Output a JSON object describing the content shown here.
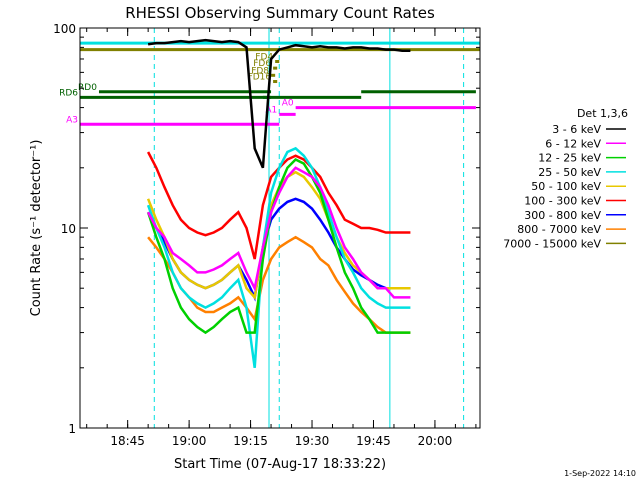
{
  "chart_data": {
    "type": "line",
    "title": "RHESSI Observing Summary Count Rates",
    "xlabel": "Start Time (07-Aug-17 18:33:22)",
    "ylabel": "Count Rate (s⁻¹ detector⁻¹)",
    "ylog": true,
    "xlim": [
      "18:33:22",
      "20:11:00"
    ],
    "ylim": [
      1,
      100
    ],
    "x_ticks": [
      "18:45",
      "19:00",
      "19:15",
      "19:30",
      "19:45",
      "20:00"
    ],
    "y_ticks": [
      "1",
      "10",
      "100"
    ],
    "legend_title": "Det 1,3,6",
    "legend_position": "right",
    "x": [
      "18:50",
      "18:52",
      "18:54",
      "18:56",
      "18:58",
      "19:00",
      "19:02",
      "19:04",
      "19:06",
      "19:08",
      "19:10",
      "19:12",
      "19:14",
      "19:16",
      "19:18",
      "19:20",
      "19:22",
      "19:24",
      "19:26",
      "19:28",
      "19:30",
      "19:32",
      "19:34",
      "19:36",
      "19:38",
      "19:40",
      "19:42",
      "19:44",
      "19:46",
      "19:48",
      "19:50",
      "19:52",
      "19:54"
    ],
    "series": [
      {
        "name": "3 - 6 keV",
        "color": "#000000",
        "values": [
          83,
          84,
          84,
          85,
          86,
          85,
          86,
          87,
          86,
          85,
          86,
          85,
          80,
          25,
          20,
          70,
          78,
          80,
          82,
          81,
          80,
          81,
          80,
          80,
          79,
          80,
          80,
          79,
          79,
          78,
          78,
          77,
          77
        ]
      },
      {
        "name": "6 - 12 keV",
        "color": "#ff00ff",
        "values": [
          12,
          10,
          9,
          7.5,
          7,
          6.5,
          6,
          6,
          6.2,
          6.5,
          7,
          7.5,
          6,
          5,
          8,
          12,
          15,
          18,
          20,
          19,
          18,
          16,
          13,
          10,
          8,
          7,
          6,
          5.5,
          5,
          5,
          4.5,
          4.5,
          4.5
        ]
      },
      {
        "name": "12 - 25 keV",
        "color": "#00d000",
        "values": [
          12,
          9,
          7,
          5,
          4,
          3.5,
          3.2,
          3,
          3.2,
          3.5,
          3.8,
          4,
          3,
          3,
          7,
          12,
          16,
          20,
          22,
          21,
          18,
          15,
          11,
          8,
          6,
          5,
          4,
          3.5,
          3,
          3,
          3,
          3,
          3
        ]
      },
      {
        "name": "25 - 50 keV",
        "color": "#00e0e0",
        "values": [
          13,
          10,
          8,
          6,
          5,
          4.5,
          4.2,
          4,
          4.2,
          4.5,
          5,
          5.5,
          4,
          2,
          8,
          15,
          20,
          24,
          25,
          23,
          20,
          16,
          12,
          9,
          7,
          6,
          5,
          4.5,
          4.2,
          4,
          4,
          4,
          4
        ]
      },
      {
        "name": "50 - 100 keV",
        "color": "#e8c800",
        "values": [
          14,
          11,
          9,
          7,
          6,
          5.5,
          5.2,
          5,
          5.2,
          5.5,
          6,
          6.5,
          5,
          4.5,
          8,
          13,
          16,
          18,
          19,
          18,
          16,
          14,
          11,
          9,
          7.5,
          6.5,
          6,
          5.5,
          5,
          5,
          5,
          5,
          5
        ]
      },
      {
        "name": "100 - 300 keV",
        "color": "#ff0000",
        "values": [
          24,
          20,
          16,
          13,
          11,
          10,
          9.5,
          9.2,
          9.5,
          10,
          11,
          12,
          10,
          7,
          13,
          18,
          20,
          22,
          23,
          22,
          20,
          18,
          15,
          13,
          11,
          10.5,
          10,
          10,
          9.8,
          9.5,
          9.5,
          9.5,
          9.5
        ]
      },
      {
        "name": "300 - 800 keV",
        "color": "#0000ff",
        "values": [
          12,
          10,
          8.5,
          7,
          6,
          5.5,
          5.2,
          5,
          5.2,
          5.5,
          6,
          6.5,
          5.5,
          4.5,
          8,
          11,
          12.5,
          13.5,
          14,
          13.5,
          12.5,
          11,
          9.5,
          8,
          7,
          6.2,
          5.8,
          5.5,
          5.2,
          5,
          5,
          5,
          5
        ]
      },
      {
        "name": "800 - 7000 keV",
        "color": "#ff8000",
        "values": [
          9,
          8,
          7,
          6,
          5,
          4.5,
          4,
          3.8,
          3.8,
          4,
          4.2,
          4.5,
          4,
          3.5,
          5.5,
          7,
          8,
          8.5,
          9,
          8.5,
          8,
          7,
          6.5,
          5.5,
          4.8,
          4.2,
          3.8,
          3.5,
          3.2,
          3,
          3,
          3,
          3
        ]
      },
      {
        "name": "7000 - 15000 keV",
        "color": "#808000",
        "values": [
          78,
          78,
          78,
          78,
          78,
          78,
          78,
          78,
          78,
          78,
          78,
          78,
          78,
          78,
          78,
          78,
          78,
          78,
          78,
          78,
          78,
          78,
          78,
          78,
          78,
          78,
          78,
          78,
          78,
          78,
          78,
          78,
          78
        ]
      }
    ],
    "vertical_lines": [
      {
        "time": "18:33:22",
        "style": "solid",
        "color": "#00e0e0"
      },
      {
        "time": "18:51:30",
        "style": "dashed",
        "color": "#00e0e0"
      },
      {
        "time": "19:19:30",
        "style": "solid",
        "color": "#00e0e0"
      },
      {
        "time": "19:22:00",
        "style": "dashed",
        "color": "#00e0e0"
      },
      {
        "time": "19:49:00",
        "style": "solid",
        "color": "#00e0e0"
      },
      {
        "time": "20:07:00",
        "style": "dashed",
        "color": "#00e0e0"
      }
    ],
    "flag_bars": [
      {
        "label": "",
        "color": "#00e0e0",
        "start": "18:33:22",
        "end": "20:11:00",
        "y": 84
      },
      {
        "label": "",
        "color": "#808000",
        "start": "18:33:22",
        "end": "20:11:00",
        "y": 78
      },
      {
        "label": "FD4",
        "color": "#808000",
        "start": "19:21:00",
        "end": "19:22:00",
        "y": 68
      },
      {
        "label": "FD6",
        "color": "#808000",
        "start": "19:20:30",
        "end": "19:21:30",
        "y": 63
      },
      {
        "label": "FD8",
        "color": "#808000",
        "start": "19:20:00",
        "end": "19:21:00",
        "y": 58
      },
      {
        "label": "FD16",
        "color": "#808000",
        "start": "19:20:30",
        "end": "19:21:30",
        "y": 54
      },
      {
        "label": "RD0",
        "color": "#006000",
        "start": "18:38:00",
        "end": "19:20:00",
        "y": 48
      },
      {
        "label": "",
        "color": "#006000",
        "start": "19:18:00",
        "end": "19:42:00",
        "y": 45
      },
      {
        "label": "",
        "color": "#006000",
        "start": "19:42:00",
        "end": "20:10:00",
        "y": 48
      },
      {
        "label": "RD6",
        "color": "#006000",
        "start": "18:33:22",
        "end": "19:20:00",
        "y": 45
      },
      {
        "label": "A0",
        "color": "#ff00ff",
        "start": "19:26:00",
        "end": "20:10:00",
        "y": 40
      },
      {
        "label": "A1",
        "color": "#ff00ff",
        "start": "19:22:00",
        "end": "19:26:00",
        "y": 37
      },
      {
        "label": "A3",
        "color": "#ff00ff",
        "start": "18:33:22",
        "end": "19:22:00",
        "y": 33
      }
    ]
  },
  "footer": {
    "date_stamp": "1-Sep-2022 14:10"
  }
}
